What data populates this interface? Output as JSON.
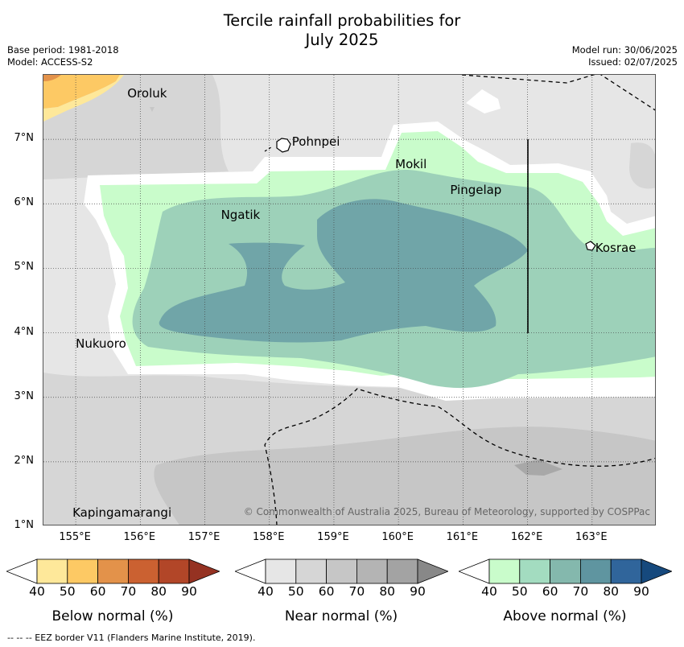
{
  "title_line1": "Tercile rainfall probabilities for",
  "title_line2": "July 2025",
  "base_period": "Base period: 1981-2018",
  "model": "Model: ACCESS-S2",
  "model_run": "Model run: 30/06/2025",
  "issued": "Issued: 02/07/2025",
  "places": [
    {
      "name": "Oroluk",
      "lon": 155.75,
      "lat": 7.7
    },
    {
      "name": "Pohnpei",
      "lon": 158.3,
      "lat": 6.95
    },
    {
      "name": "Mokil",
      "lon": 159.9,
      "lat": 6.6
    },
    {
      "name": "Pingelap",
      "lon": 160.75,
      "lat": 6.2
    },
    {
      "name": "Ngatik",
      "lon": 157.2,
      "lat": 5.82
    },
    {
      "name": "Kosrae",
      "lon": 163.0,
      "lat": 5.3
    },
    {
      "name": "Nukuoro",
      "lon": 154.95,
      "lat": 3.82
    },
    {
      "name": "Kapingamarangi",
      "lon": 154.9,
      "lat": 1.2
    }
  ],
  "axes": {
    "lon_ticks": [
      "155°E",
      "156°E",
      "157°E",
      "158°E",
      "159°E",
      "160°E",
      "161°E",
      "162°E",
      "163°E"
    ],
    "lon_values": [
      155,
      156,
      157,
      158,
      159,
      160,
      161,
      162,
      163
    ],
    "lat_ticks": [
      "7°N",
      "6°N",
      "5°N",
      "4°N",
      "3°N",
      "2°N",
      "1°N"
    ],
    "lat_values": [
      7,
      6,
      5,
      4,
      3,
      2,
      1
    ],
    "lon_range": [
      154.5,
      164.0
    ],
    "lat_range": [
      1.0,
      8.0
    ]
  },
  "copyright": "© Commonwealth of Australia 2025, Bureau of Meteorology, supported by COSPPac",
  "colorbars": [
    {
      "title": "Below normal (%)",
      "ticks": [
        "40",
        "50",
        "60",
        "70",
        "80",
        "90"
      ],
      "colors": [
        "#ffffff",
        "#fee89a",
        "#fdc964",
        "#e3924a",
        "#cb6131",
        "#b24628",
        "#953222"
      ]
    },
    {
      "title": "Near normal (%)",
      "ticks": [
        "40",
        "50",
        "60",
        "70",
        "80",
        "90"
      ],
      "colors": [
        "#ffffff",
        "#e6e6e6",
        "#d6d6d6",
        "#c6c6c6",
        "#b4b4b4",
        "#a3a3a3",
        "#888888"
      ]
    },
    {
      "title": "Above normal (%)",
      "ticks": [
        "40",
        "50",
        "60",
        "70",
        "80",
        "90"
      ],
      "colors": [
        "#ffffff",
        "#c9fccb",
        "#a3dcc0",
        "#84b8ad",
        "#5f95a0",
        "#30659b",
        "#16497d"
      ]
    }
  ],
  "footnote": "-- -- -- EEZ border V11 (Flanders Marine Institute, 2019)."
}
